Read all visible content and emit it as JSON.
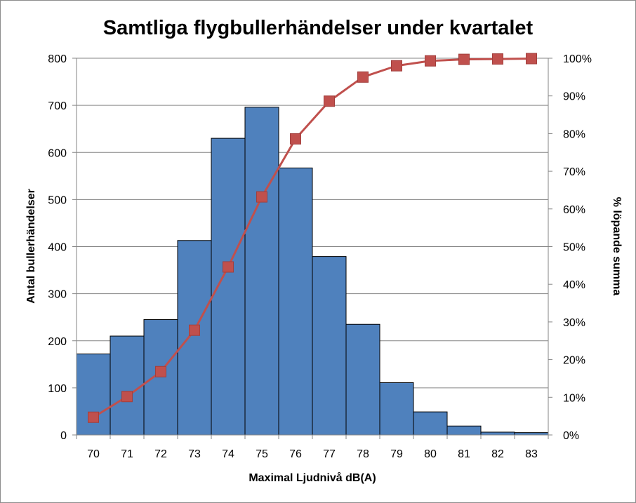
{
  "chart_data": {
    "type": "bar",
    "title": "Samtliga flygbullerhändelser under kvartalet",
    "xlabel": "Maximal Ljudnivå dB(A)",
    "ylabel": "Antal bullerhändelser",
    "y2label": "% löpande summa",
    "categories": [
      "70",
      "71",
      "72",
      "73",
      "74",
      "75",
      "76",
      "77",
      "78",
      "79",
      "80",
      "81",
      "82",
      "83"
    ],
    "ylim": [
      0,
      800
    ],
    "y_ticks": [
      "0",
      "100",
      "200",
      "300",
      "400",
      "500",
      "600",
      "700",
      "800"
    ],
    "y2lim": [
      0,
      100
    ],
    "y2_ticks": [
      "0%",
      "10%",
      "20%",
      "30%",
      "40%",
      "50%",
      "60%",
      "70%",
      "80%",
      "90%",
      "100%"
    ],
    "grid": true,
    "series": [
      {
        "type": "bar",
        "axis": "left",
        "color": "#4f81bd",
        "values": [
          172,
          210,
          245,
          413,
          630,
          696,
          567,
          379,
          235,
          111,
          49,
          19,
          6,
          5
        ]
      },
      {
        "type": "line",
        "axis": "right",
        "color": "#c0504d",
        "marker": "square",
        "values": [
          4.7,
          10.2,
          16.8,
          27.8,
          44.6,
          63.2,
          78.6,
          88.6,
          95.0,
          98.0,
          99.3,
          99.7,
          99.8,
          99.9
        ]
      }
    ]
  }
}
